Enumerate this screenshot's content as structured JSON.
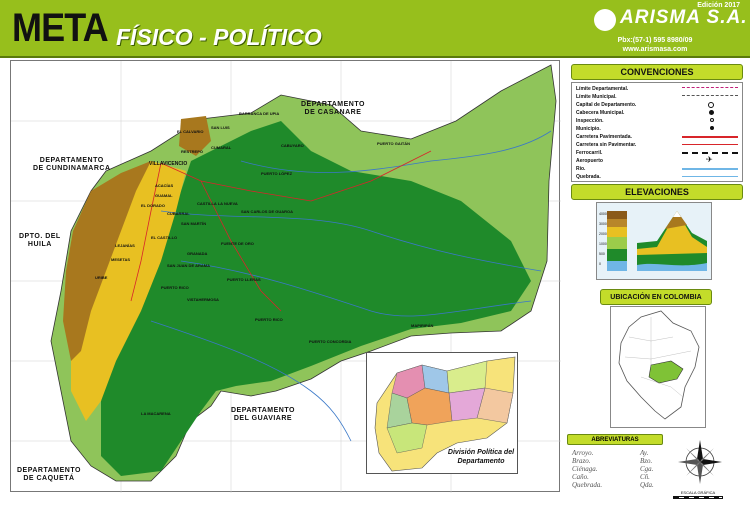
{
  "header": {
    "title": "META",
    "subtitle": "FÍSICO - POLÍTICO",
    "edition": "Edición 2017",
    "brand": "ARISMA S.A.",
    "phone": "Pbx:(57-1) 595 8980/09",
    "website": "www.arismasa.com"
  },
  "map": {
    "neighbors": [
      {
        "line1": "DEPARTAMENTO",
        "line2": "DE CASANARE"
      },
      {
        "line1": "DEPARTAMENTO",
        "line2": "DE CUNDINAMARCA"
      },
      {
        "line1": "DPTO. DEL",
        "line2": "HUILA"
      },
      {
        "line1": "DEPARTAMENTO",
        "line2": "DEL GUAVIARE"
      },
      {
        "line1": "DEPARTAMENTO",
        "line2": "DE CAQUETÁ"
      }
    ],
    "towns": [
      "BARRANCA DE UPIA",
      "SAN LUIS",
      "EL CALVARIO",
      "RESTREPO",
      "CUMARAL",
      "VILLAVICENCIO",
      "ACACÍAS",
      "GUAMAL",
      "CUBARRAL",
      "EL DORADO",
      "CASTILLA LA NUEVA",
      "SAN CARLOS DE GUAROA",
      "LEJANÍAS",
      "EL CASTILLO",
      "MESETAS",
      "URIBE",
      "SAN JUAN DE ARAMA",
      "VISTAHERMOSA",
      "PUERTO LLERAS",
      "PUERTO RICO",
      "LA MACARENA",
      "PUERTO GAITÁN",
      "PUERTO LÓPEZ",
      "MAPIRIPÁN",
      "PUERTO CONCORDIA",
      "CABUYARO",
      "FUENTE DE ORO",
      "PUERTO RICO",
      "SAN MARTÍN",
      "GRANADA"
    ],
    "inset_title": "División Política del Departamento"
  },
  "legend": {
    "title": "CONVENCIONES",
    "items": [
      "Límite Departamental.",
      "Límite Municipal.",
      "Capital de Departamento.",
      "Cabecera Municipal.",
      "Inspección.",
      "Municipio.",
      "Carretera Pavimentada.",
      "Carretera sin Pavimentar.",
      "Ferrocarril.",
      "Aeropuerto",
      "Río.",
      "Quebrada."
    ]
  },
  "elevations": {
    "title": "ELEVACIONES",
    "ticks": [
      "4000",
      "3000",
      "2000",
      "1000",
      "500",
      "0"
    ]
  },
  "location": {
    "title": "UBICACIÓN EN COLOMBIA"
  },
  "abbreviations": {
    "title": "ABREVIATURAS",
    "col1": [
      "Arroyo.",
      "Brazo.",
      "Ciénaga.",
      "Caño.",
      "Quebrada."
    ],
    "col2": [
      "Ay.",
      "Bzo.",
      "Cga.",
      "Cñ.",
      "Qda."
    ]
  },
  "scale": {
    "label": "ESCALA GRÁFICA"
  },
  "colors": {
    "header": "#97bf1c",
    "lowland": "#1f8a2a",
    "plains": "#8fc45a",
    "foothill": "#e8c022",
    "mountain": "#a8781e"
  }
}
